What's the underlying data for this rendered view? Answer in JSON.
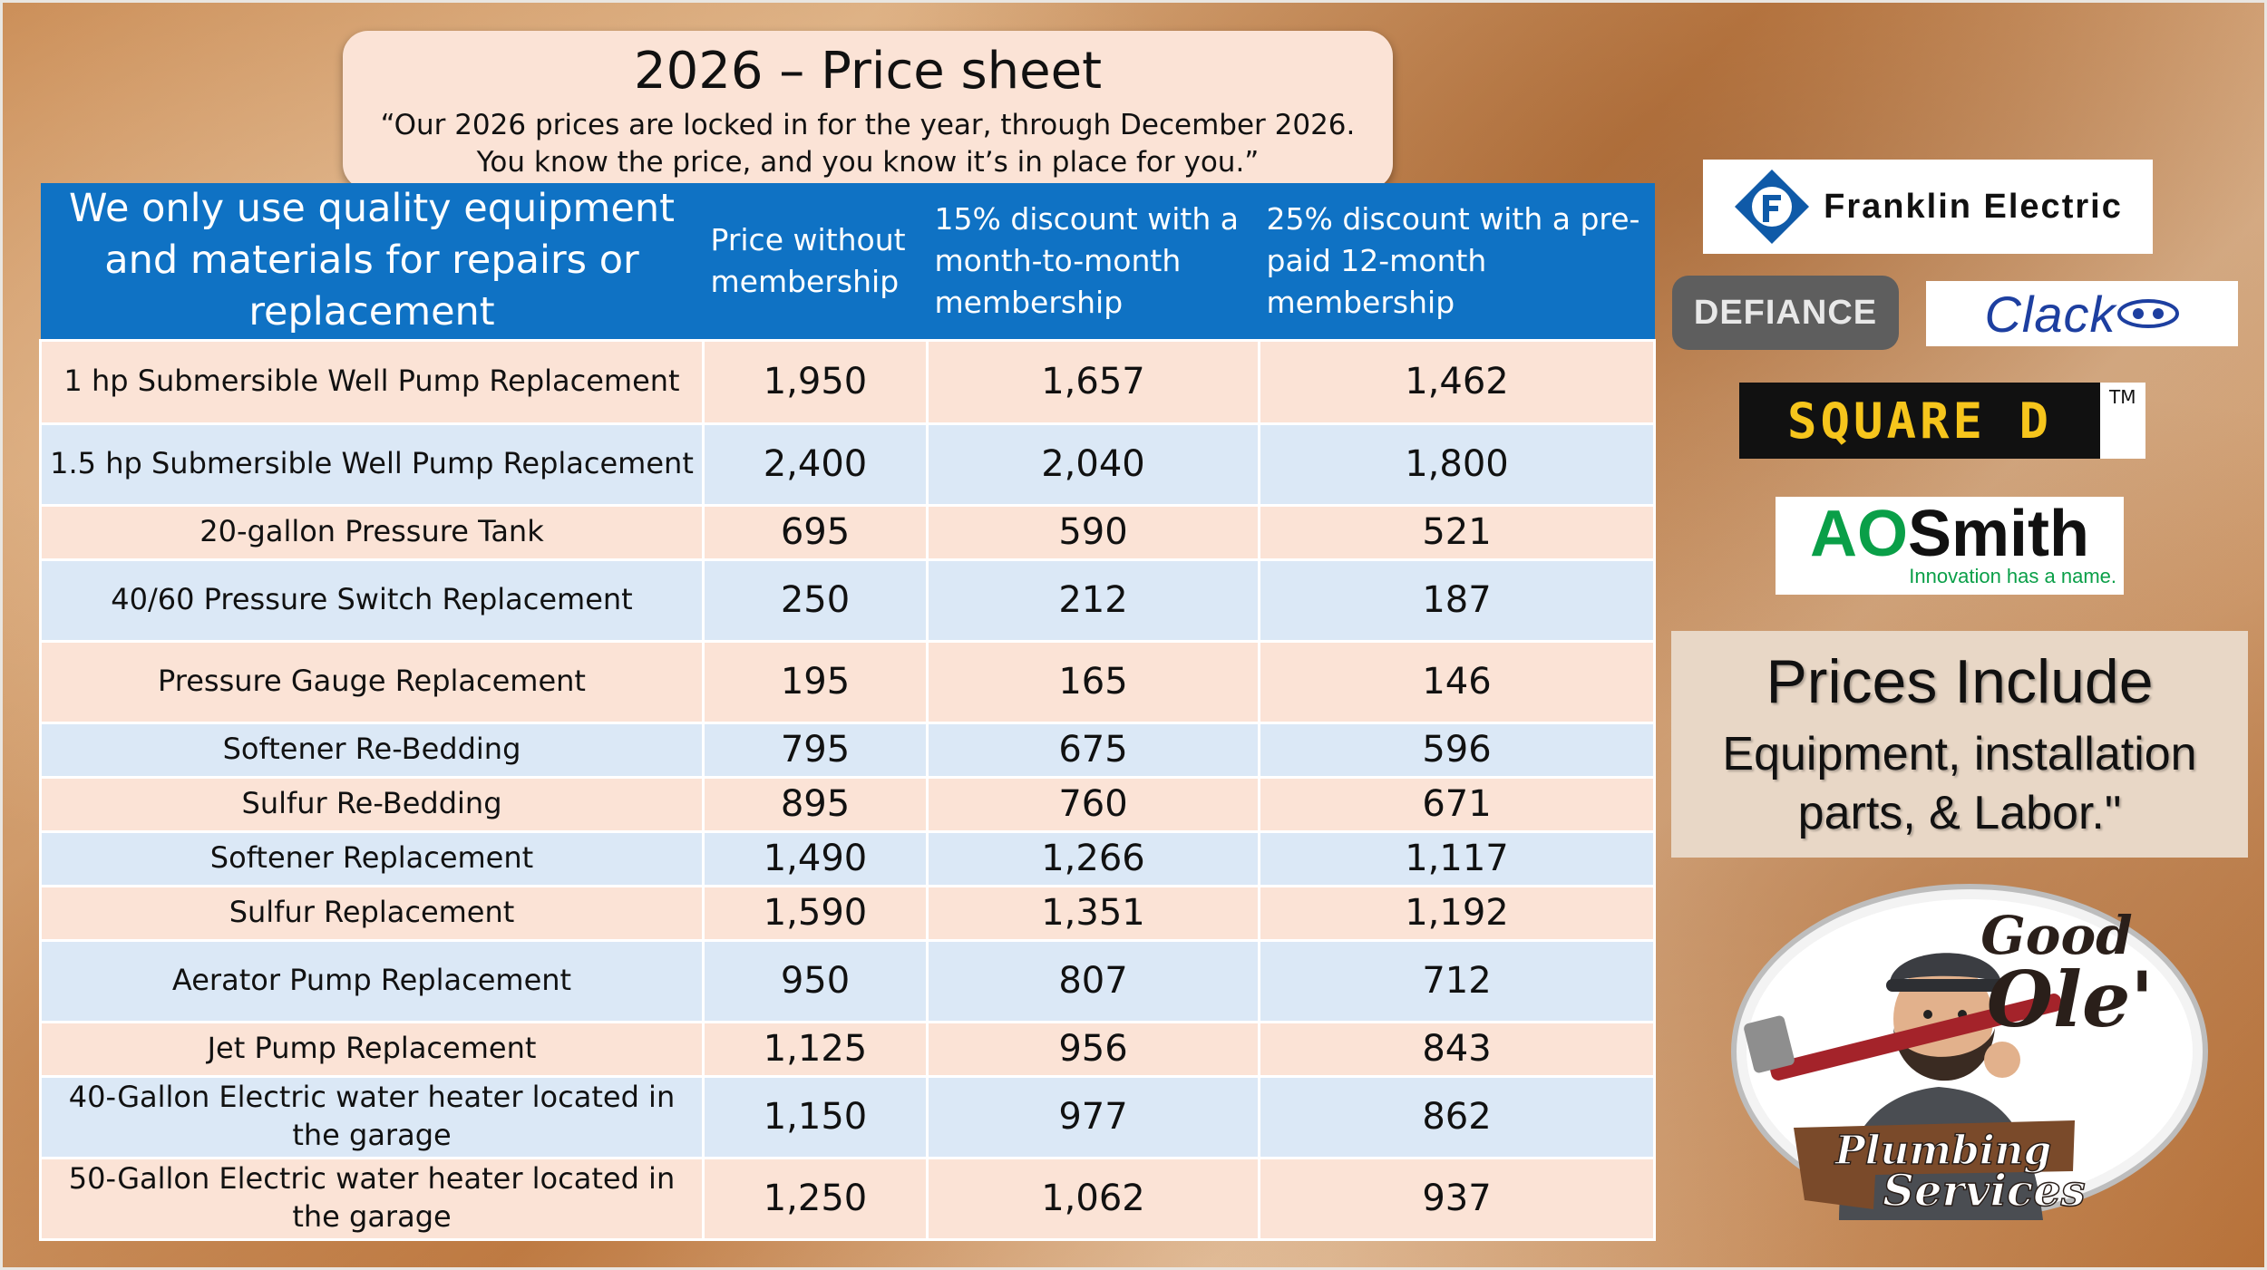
{
  "header": {
    "title": "2026 – Price sheet",
    "quote_line1": "“Our 2026 prices are locked in for the year, through December 2026.",
    "quote_line2": "You know the price, and you know it’s in place for you.”"
  },
  "table": {
    "columns": [
      "We only use quality equipment and materials for repairs or replacement",
      "Price without membership",
      "15% discount with a month-to-month membership",
      "25% discount with a pre-paid 12-month  membership"
    ],
    "rows": [
      {
        "service": "1 hp Submersible Well Pump Replacement",
        "price": "1,950",
        "monthly": "1,657",
        "prepaid": "1,462"
      },
      {
        "service": "1.5 hp Submersible Well Pump Replacement",
        "price": "2,400",
        "monthly": "2,040",
        "prepaid": "1,800"
      },
      {
        "service": "20-gallon Pressure Tank",
        "price": "695",
        "monthly": "590",
        "prepaid": "521"
      },
      {
        "service": "40/60 Pressure Switch Replacement",
        "price": "250",
        "monthly": "212",
        "prepaid": "187"
      },
      {
        "service": "Pressure Gauge Replacement",
        "price": "195",
        "monthly": "165",
        "prepaid": "146"
      },
      {
        "service": "Softener Re-Bedding",
        "price": "795",
        "monthly": "675",
        "prepaid": "596"
      },
      {
        "service": "Sulfur Re-Bedding",
        "price": "895",
        "monthly": "760",
        "prepaid": "671"
      },
      {
        "service": "Softener Replacement",
        "price": "1,490",
        "monthly": "1,266",
        "prepaid": "1,117"
      },
      {
        "service": "Sulfur Replacement",
        "price": "1,590",
        "monthly": "1,351",
        "prepaid": "1,192"
      },
      {
        "service": "Aerator Pump Replacement",
        "price": "950",
        "monthly": "807",
        "prepaid": "712"
      },
      {
        "service": "Jet Pump Replacement",
        "price": "1,125",
        "monthly": "956",
        "prepaid": "843"
      },
      {
        "service": "40-Gallon Electric water heater located in the garage",
        "price": "1,150",
        "monthly": "977",
        "prepaid": "862"
      },
      {
        "service": "50-Gallon Electric water heater located in the garage",
        "price": "1,250",
        "monthly": "1,062",
        "prepaid": "937"
      }
    ]
  },
  "brands": {
    "franklin": "Franklin Electric",
    "defiance": "DEFIANCE",
    "clack": "Clack",
    "square_d": "SQUARE D",
    "square_d_tm": "TM",
    "aosmith_ao": "AO",
    "aosmith_smith": "Smith",
    "aosmith_tagline": "Innovation has a name."
  },
  "includes": {
    "heading": "Prices Include",
    "line1": "Equipment, installation",
    "line2": "parts, & Labor.\""
  },
  "company": {
    "word1": "Good",
    "word2": "Ole'",
    "word3": "Plumbing",
    "word4": "Services"
  },
  "colors": {
    "header_blue": "#0f72c4",
    "row_peach": "#fbe3d6",
    "row_blue": "#dbe8f6",
    "ao_green": "#0a9f48",
    "square_d_yellow": "#f6c51c"
  }
}
